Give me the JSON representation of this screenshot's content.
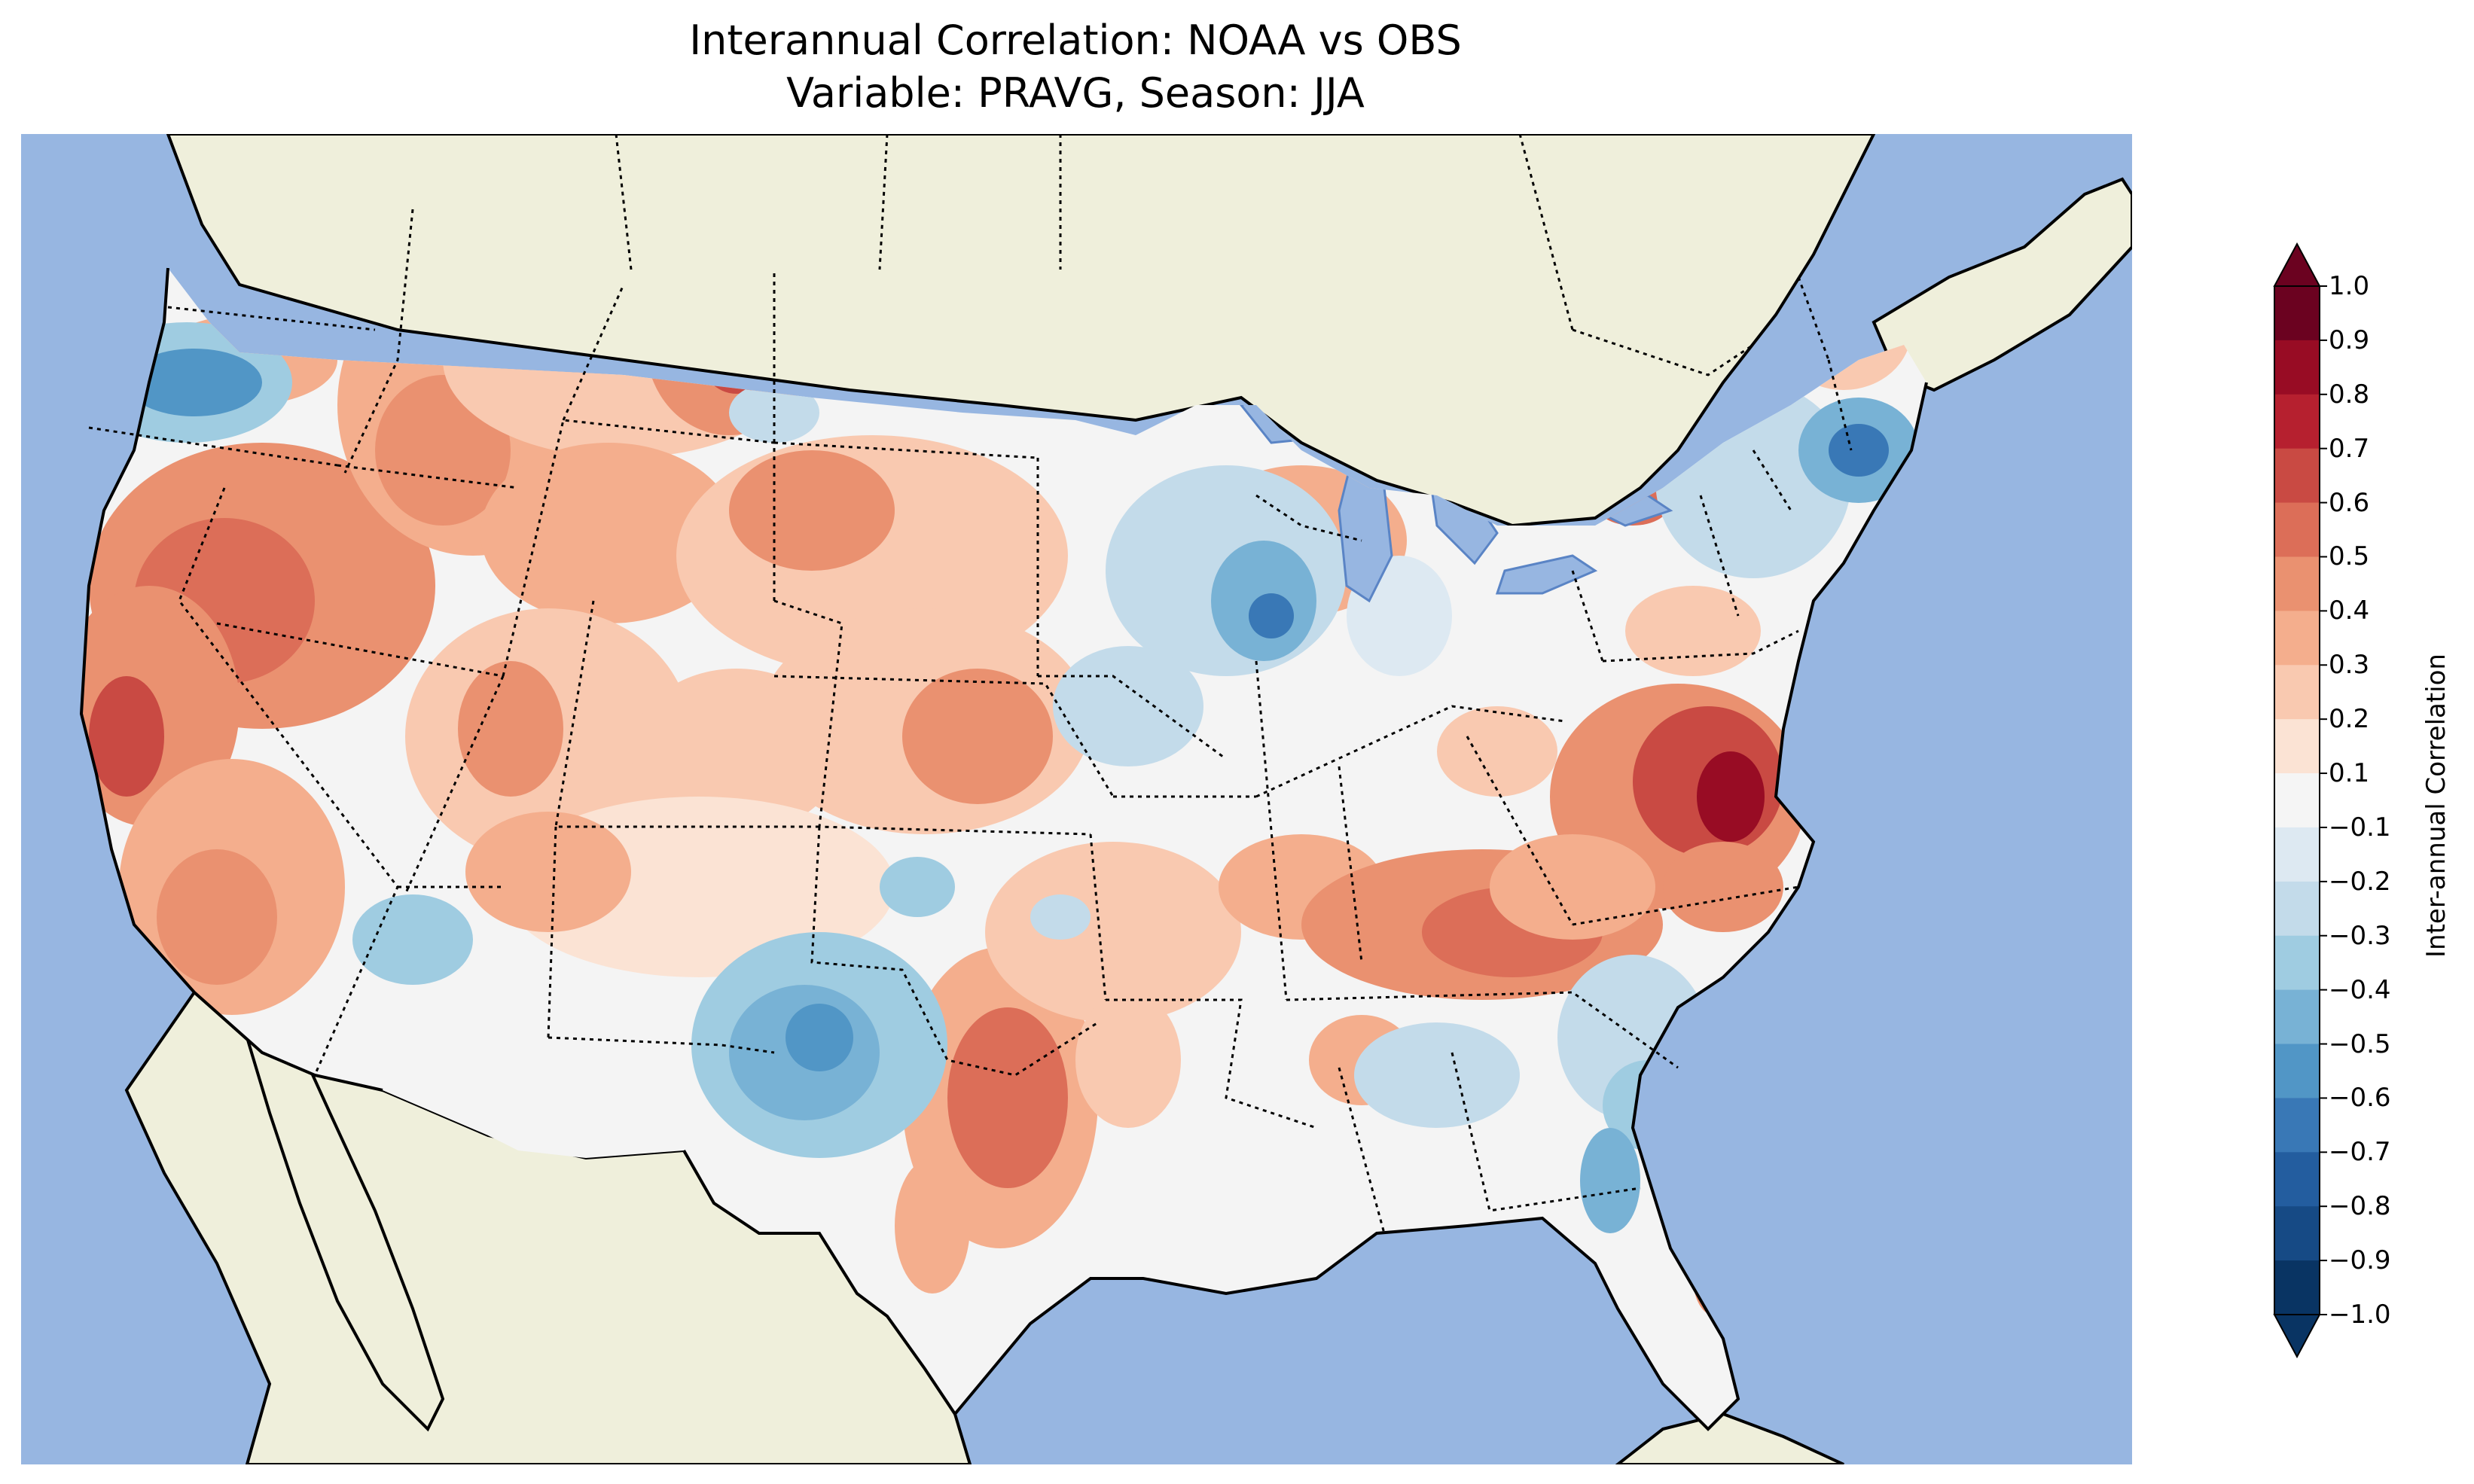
{
  "title": {
    "line1": "Interannual Correlation: NOAA vs OBS",
    "line2": "Variable: PRAVG, Season: JJA"
  },
  "colorbar": {
    "label": "Inter-annual Correlation",
    "min": -1.0,
    "max": 1.0,
    "ticks": [
      "1.0",
      "0.9",
      "0.8",
      "0.7",
      "0.6",
      "0.5",
      "0.4",
      "0.3",
      "0.2",
      "0.1",
      "−0.1",
      "−0.2",
      "−0.3",
      "−0.4",
      "−0.5",
      "−0.6",
      "−0.7",
      "−0.8",
      "−0.9",
      "−1.0"
    ],
    "colors_top_to_bottom": [
      "#6b0220",
      "#980c24",
      "#b6202f",
      "#c94a43",
      "#dc6e58",
      "#ea9170",
      "#f4ae8d",
      "#f9c9b0",
      "#fbe3d4",
      "#f5f5f5",
      "#dde9f2",
      "#c3dbea",
      "#9fcce1",
      "#78b2d5",
      "#5196c6",
      "#3978b6",
      "#235d9f",
      "#164a85",
      "#093463"
    ]
  },
  "colors": {
    "ocean": "#97b6e1",
    "land": "#efefdb",
    "coast": "#000000"
  }
}
